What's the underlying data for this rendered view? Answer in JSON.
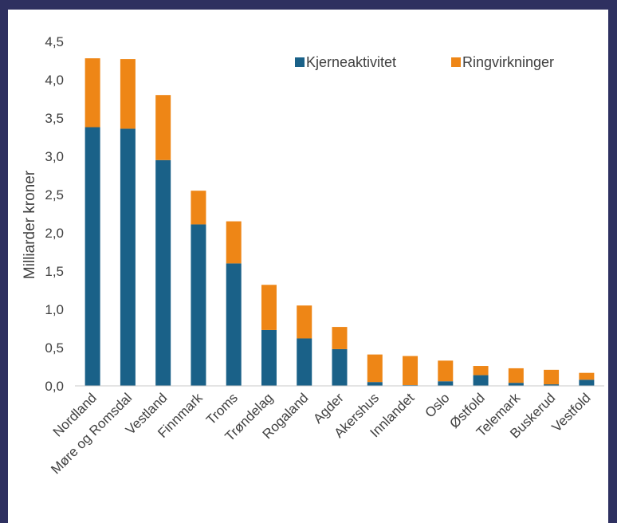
{
  "chart_data": {
    "type": "bar",
    "stacked": true,
    "categories": [
      "Nordland",
      "Møre og Romsdal",
      "Vestland",
      "Finnmark",
      "Troms",
      "Trøndelag",
      "Rogaland",
      "Agder",
      "Akershus",
      "Innlandet",
      "Oslo",
      "Østfold",
      "Telemark",
      "Buskerud",
      "Vestfold"
    ],
    "series": [
      {
        "name": "Kjerneaktivitet",
        "color": "#1a6188",
        "values": [
          3.38,
          3.36,
          2.95,
          2.11,
          1.6,
          0.73,
          0.62,
          0.48,
          0.05,
          0.01,
          0.06,
          0.14,
          0.04,
          0.02,
          0.08
        ]
      },
      {
        "name": "Ringvirkninger",
        "color": "#ee8616",
        "values": [
          0.9,
          0.91,
          0.85,
          0.44,
          0.55,
          0.59,
          0.43,
          0.29,
          0.36,
          0.38,
          0.27,
          0.12,
          0.19,
          0.19,
          0.09
        ]
      }
    ],
    "ylabel": "Milliarder kroner",
    "ylim": [
      0,
      4.5
    ],
    "yticks": [
      0,
      0.5,
      1.0,
      1.5,
      2.0,
      2.5,
      3.0,
      3.5,
      4.0,
      4.5
    ],
    "ytick_labels": [
      "0,0",
      "0,5",
      "1,0",
      "1,5",
      "2,0",
      "2,5",
      "3,0",
      "3,5",
      "4,0",
      "4,5"
    ],
    "grid": false,
    "legend": "top-right"
  }
}
